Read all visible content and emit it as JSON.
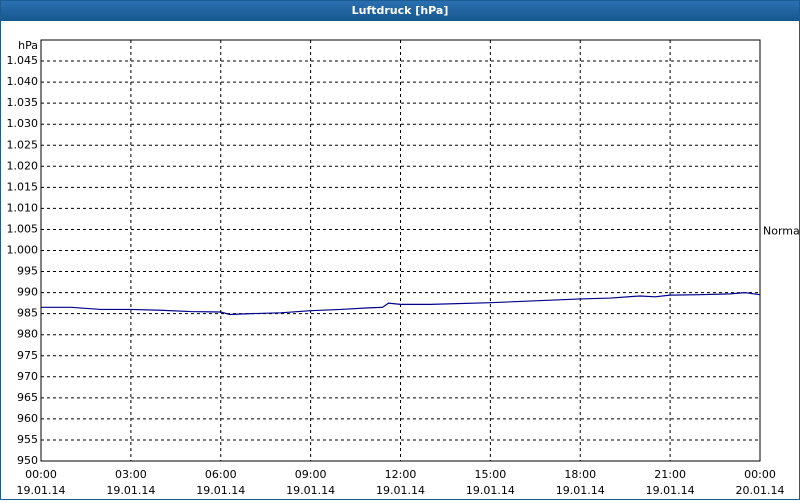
{
  "chart_data": {
    "type": "line",
    "title": "Luftdruck [hPa]",
    "y_label": "hPa",
    "x": [
      0,
      1,
      2,
      3,
      4,
      5,
      6,
      6.3,
      7,
      8,
      9,
      10,
      11,
      11.4,
      11.6,
      12,
      13,
      15,
      17,
      18,
      19,
      20,
      20.5,
      21,
      22,
      23,
      23.5,
      24
    ],
    "series": [
      {
        "name": "Luftdruck",
        "color": "#00008b",
        "values": [
          986.5,
          986.5,
          986,
          986,
          985.8,
          985.5,
          985.4,
          984.8,
          985,
          985.2,
          985.7,
          986,
          986.4,
          986.5,
          987.5,
          987.2,
          987.2,
          987.6,
          988.2,
          988.5,
          988.7,
          989.2,
          989,
          989.4,
          989.5,
          989.7,
          990,
          989.5
        ]
      }
    ],
    "xlim": [
      0,
      24
    ],
    "xticks": [
      {
        "value": 0,
        "label": "00:00",
        "date": "19.01.14"
      },
      {
        "value": 3,
        "label": "03:00",
        "date": "19.01.14"
      },
      {
        "value": 6,
        "label": "06:00",
        "date": "19.01.14"
      },
      {
        "value": 9,
        "label": "09:00",
        "date": "19.01.14"
      },
      {
        "value": 12,
        "label": "12:00",
        "date": "19.01.14"
      },
      {
        "value": 15,
        "label": "15:00",
        "date": "19.01.14"
      },
      {
        "value": 18,
        "label": "18:00",
        "date": "19.01.14"
      },
      {
        "value": 21,
        "label": "21:00",
        "date": "19.01.14"
      },
      {
        "value": 24,
        "label": "00:00",
        "date": "20.01.14"
      }
    ],
    "ylim": [
      950,
      1050
    ],
    "yticks": [
      950,
      955,
      960,
      965,
      970,
      975,
      980,
      985,
      990,
      995,
      {
        "value": 1000,
        "label": "1.000"
      },
      {
        "value": 1005,
        "label": "1.005"
      },
      {
        "value": 1010,
        "label": "1.010"
      },
      {
        "value": 1015,
        "label": "1.015"
      },
      {
        "value": 1020,
        "label": "1.020"
      },
      {
        "value": 1025,
        "label": "1.025"
      },
      {
        "value": 1030,
        "label": "1.030"
      },
      {
        "value": 1035,
        "label": "1.035"
      },
      {
        "value": 1040,
        "label": "1.040"
      },
      {
        "value": 1045,
        "label": "1.045"
      }
    ],
    "grid": true,
    "annotations": [
      {
        "text": "Normal",
        "y": 1005
      }
    ]
  }
}
